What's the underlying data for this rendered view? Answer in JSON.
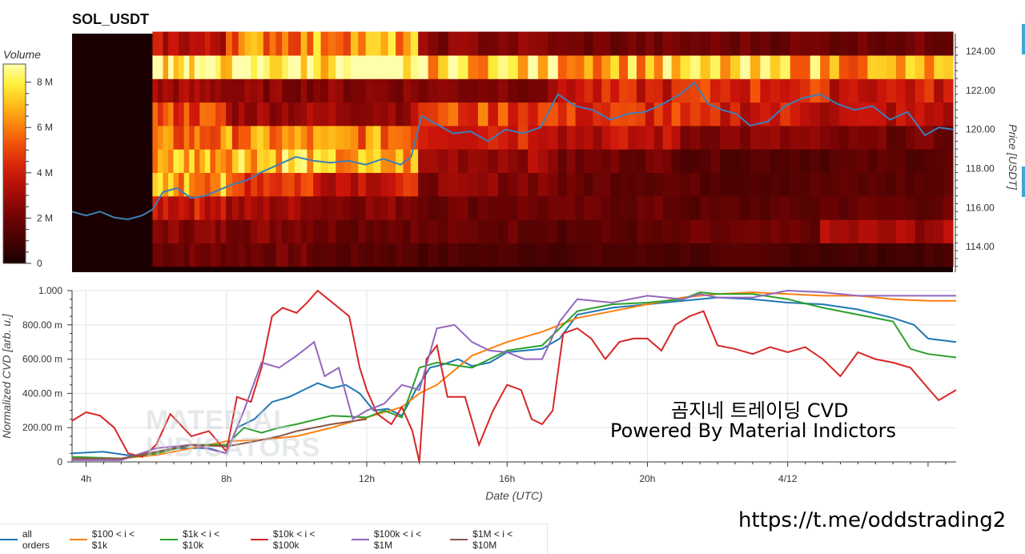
{
  "heatmap": {
    "title": "SOL_USDT",
    "colorbar": {
      "label": "Volume",
      "ticks": [
        "0",
        "2 M",
        "4 M",
        "6 M",
        "8 M"
      ],
      "tick_values": [
        0,
        2,
        4,
        6,
        8
      ],
      "max": 8.8
    },
    "price_axis": {
      "label": "Price [USDT]",
      "ticks": [
        "114.00",
        "116.00",
        "118.00",
        "120.00",
        "122.00",
        "124.00"
      ],
      "tick_values": [
        114,
        116,
        118,
        120,
        122,
        124
      ],
      "range": [
        112.7,
        124.9
      ]
    }
  },
  "promo": {
    "title": "곰지네 트레이딩 CVD",
    "subtitle": "Powered By Material Indictors",
    "link": "https://t.me/oddstrading2"
  },
  "watermark": {
    "line1": "MATERIAL",
    "line2": "INDICATORS"
  },
  "colors": {
    "price_line": "#3d7fb8",
    "heat_dark": "#1a0000",
    "heat_hot": "#ffff99",
    "edge_mark": "#3ea6d6"
  },
  "chart_data": [
    {
      "type": "heatmap",
      "title": "SOL_USDT",
      "xlabel": "Date (UTC)",
      "ylabel": "Price [USDT]",
      "time_range_hours": [
        3.6,
        28.8
      ],
      "no_data_before_hour": 5.9,
      "price_levels": [
        113.6,
        114.8,
        116.0,
        117.2,
        118.4,
        119.6,
        120.8,
        122.0,
        123.2,
        124.4
      ],
      "time_buckets": [
        "5.9-8.0h",
        "8.0-10.5h",
        "10.5-13.5h",
        "13.5-17.5h",
        "17.5-21h",
        "21-25h",
        "25-28.8h"
      ],
      "volume_millions": [
        [
          2.0,
          2.0,
          1.5,
          1.2,
          1.2,
          1.2,
          1.0
        ],
        [
          2.5,
          2.5,
          2.0,
          1.8,
          1.5,
          1.8,
          3.0
        ],
        [
          4.0,
          3.0,
          2.5,
          2.0,
          1.8,
          1.5,
          1.8
        ],
        [
          6.5,
          5.0,
          4.0,
          2.5,
          1.8,
          1.5,
          1.5
        ],
        [
          7.0,
          7.5,
          6.5,
          3.0,
          2.0,
          1.5,
          1.5
        ],
        [
          5.5,
          6.0,
          6.0,
          4.5,
          3.5,
          2.5,
          2.0
        ],
        [
          5.0,
          3.0,
          3.0,
          5.0,
          4.5,
          4.0,
          3.5
        ],
        [
          3.0,
          2.5,
          2.5,
          2.5,
          4.0,
          4.5,
          4.0
        ],
        [
          8.5,
          8.5,
          8.5,
          7.5,
          7.0,
          7.0,
          6.5
        ],
        [
          3.5,
          6.0,
          6.5,
          2.5,
          2.0,
          2.0,
          2.0
        ]
      ],
      "price_line": {
        "x_hours": [
          3.6,
          4.0,
          4.4,
          4.8,
          5.2,
          5.6,
          5.9,
          6.2,
          6.6,
          7.0,
          7.4,
          7.8,
          8.2,
          8.6,
          9.0,
          9.5,
          10.0,
          10.5,
          11.0,
          11.5,
          12.0,
          12.5,
          13.0,
          13.3,
          13.6,
          14.0,
          14.5,
          15.0,
          15.5,
          16.0,
          16.5,
          17.0,
          17.5,
          18.0,
          18.5,
          19.0,
          19.5,
          20.0,
          20.5,
          21.0,
          21.4,
          21.8,
          22.2,
          22.6,
          23.0,
          23.5,
          24.0,
          24.5,
          25.0,
          25.5,
          26.0,
          26.5,
          27.0,
          27.5,
          28.0,
          28.4,
          28.8
        ],
        "price": [
          115.8,
          115.6,
          115.8,
          115.5,
          115.4,
          115.6,
          115.9,
          116.8,
          117.0,
          116.5,
          116.6,
          116.9,
          117.2,
          117.4,
          117.8,
          118.2,
          118.6,
          118.4,
          118.3,
          118.4,
          118.2,
          118.5,
          118.2,
          118.6,
          120.7,
          120.3,
          119.8,
          119.9,
          119.4,
          120.0,
          119.8,
          120.1,
          121.8,
          121.2,
          121.0,
          120.5,
          120.8,
          120.9,
          121.3,
          121.8,
          122.4,
          121.3,
          121.0,
          120.8,
          120.2,
          120.4,
          121.2,
          121.6,
          121.8,
          121.3,
          121.0,
          121.2,
          120.5,
          120.9,
          119.7,
          120.1,
          120.0
        ]
      }
    },
    {
      "type": "line",
      "title": "",
      "xlabel": "Date (UTC)",
      "ylabel": "Normalized CVD [arb. u.]",
      "x_ticks": [
        "4h",
        "8h",
        "12h",
        "16h",
        "20h",
        "4/12"
      ],
      "x_tick_values": [
        4,
        8,
        12,
        16,
        20,
        24
      ],
      "xlim": [
        3.6,
        28.8
      ],
      "y_ticks": [
        "0",
        "200.00 m",
        "400.00 m",
        "600.00 m",
        "800.00 m",
        "1.000"
      ],
      "y_tick_values": [
        0,
        0.2,
        0.4,
        0.6,
        0.8,
        1.0
      ],
      "ylim": [
        0,
        1.0
      ],
      "series": [
        {
          "name": "all orders",
          "color": "#1f77b4",
          "x": [
            3.6,
            4.5,
            5.5,
            6.0,
            6.5,
            7.5,
            8.0,
            8.3,
            8.8,
            9.3,
            9.8,
            10.2,
            10.6,
            11.0,
            11.4,
            11.8,
            12.2,
            12.6,
            13.0,
            13.4,
            13.8,
            14.2,
            14.6,
            15.0,
            15.5,
            16.0,
            16.5,
            17.0,
            17.5,
            18.0,
            19.0,
            20.0,
            21.0,
            22.0,
            23.0,
            24.0,
            25.0,
            26.0,
            27.0,
            27.6,
            28.0,
            28.8
          ],
          "y": [
            0.05,
            0.06,
            0.03,
            0.05,
            0.08,
            0.08,
            0.05,
            0.2,
            0.25,
            0.35,
            0.38,
            0.42,
            0.46,
            0.43,
            0.45,
            0.4,
            0.3,
            0.31,
            0.27,
            0.42,
            0.55,
            0.57,
            0.6,
            0.56,
            0.58,
            0.64,
            0.65,
            0.66,
            0.72,
            0.86,
            0.9,
            0.92,
            0.94,
            0.96,
            0.95,
            0.93,
            0.92,
            0.89,
            0.84,
            0.8,
            0.72,
            0.7
          ]
        },
        {
          "name": "$100 < i < $1k",
          "color": "#ff7f0e",
          "x": [
            3.6,
            5.0,
            6.0,
            7.0,
            8.0,
            9.0,
            10.0,
            11.0,
            12.0,
            13.0,
            13.5,
            14.0,
            15.0,
            16.0,
            17.0,
            18.0,
            19.0,
            20.0,
            21.0,
            22.0,
            23.0,
            24.0,
            25.0,
            26.0,
            27.0,
            28.0,
            28.8
          ],
          "y": [
            0.02,
            0.02,
            0.04,
            0.08,
            0.12,
            0.13,
            0.15,
            0.2,
            0.26,
            0.32,
            0.4,
            0.45,
            0.62,
            0.7,
            0.76,
            0.84,
            0.88,
            0.92,
            0.96,
            0.98,
            0.99,
            0.98,
            0.97,
            0.97,
            0.95,
            0.94,
            0.94
          ]
        },
        {
          "name": "$1k < i < $10k",
          "color": "#2ca02c",
          "x": [
            3.6,
            5.0,
            6.0,
            7.0,
            8.0,
            8.5,
            9.0,
            9.5,
            10.0,
            11.0,
            12.0,
            12.5,
            13.0,
            13.5,
            14.0,
            15.0,
            15.5,
            16.0,
            17.0,
            18.0,
            19.0,
            20.0,
            21.0,
            21.5,
            22.0,
            23.0,
            24.0,
            25.0,
            26.0,
            27.0,
            27.5,
            28.0,
            28.8
          ],
          "y": [
            0.03,
            0.02,
            0.05,
            0.1,
            0.1,
            0.2,
            0.17,
            0.2,
            0.22,
            0.27,
            0.26,
            0.3,
            0.26,
            0.55,
            0.58,
            0.55,
            0.6,
            0.65,
            0.68,
            0.88,
            0.92,
            0.93,
            0.95,
            0.99,
            0.98,
            0.98,
            0.95,
            0.9,
            0.86,
            0.82,
            0.66,
            0.63,
            0.61
          ]
        },
        {
          "name": "$10k < i < $100k",
          "color": "#d62728",
          "x": [
            3.6,
            4.0,
            4.4,
            4.8,
            5.2,
            5.6,
            6.0,
            6.4,
            7.0,
            7.5,
            8.0,
            8.3,
            8.7,
            9.0,
            9.3,
            9.6,
            10.0,
            10.3,
            10.6,
            10.9,
            11.2,
            11.5,
            11.8,
            12.0,
            12.3,
            12.7,
            13.0,
            13.3,
            13.5,
            13.7,
            14.0,
            14.3,
            14.8,
            15.2,
            15.6,
            16.0,
            16.4,
            16.7,
            17.0,
            17.3,
            17.6,
            18.0,
            18.4,
            18.8,
            19.2,
            19.6,
            20.0,
            20.4,
            20.8,
            21.2,
            21.6,
            22.0,
            22.5,
            23.0,
            23.5,
            24.0,
            24.5,
            25.0,
            25.5,
            26.0,
            26.5,
            27.0,
            27.5,
            28.0,
            28.3,
            28.8
          ],
          "y": [
            0.24,
            0.29,
            0.27,
            0.2,
            0.05,
            0.03,
            0.1,
            0.28,
            0.15,
            0.18,
            0.06,
            0.38,
            0.35,
            0.55,
            0.85,
            0.9,
            0.87,
            0.93,
            1.0,
            0.95,
            0.9,
            0.85,
            0.55,
            0.42,
            0.28,
            0.22,
            0.32,
            0.18,
            0.0,
            0.6,
            0.68,
            0.38,
            0.38,
            0.1,
            0.3,
            0.45,
            0.42,
            0.25,
            0.22,
            0.3,
            0.75,
            0.78,
            0.72,
            0.6,
            0.7,
            0.72,
            0.72,
            0.65,
            0.8,
            0.85,
            0.88,
            0.68,
            0.66,
            0.63,
            0.67,
            0.64,
            0.67,
            0.6,
            0.5,
            0.64,
            0.6,
            0.58,
            0.55,
            0.43,
            0.36,
            0.42
          ]
        },
        {
          "name": "$100k < i < $1M",
          "color": "#9467bd",
          "x": [
            3.6,
            5.0,
            6.0,
            7.0,
            8.0,
            8.5,
            9.0,
            9.5,
            10.0,
            10.5,
            10.8,
            11.2,
            11.6,
            12.0,
            12.5,
            13.0,
            13.5,
            14.0,
            14.5,
            15.0,
            15.5,
            16.0,
            16.5,
            17.0,
            17.5,
            18.0,
            19.0,
            20.0,
            21.0,
            21.5,
            22.0,
            23.0,
            24.0,
            25.0,
            26.0,
            27.0,
            28.0,
            28.8
          ],
          "y": [
            0.01,
            0.01,
            0.08,
            0.1,
            0.05,
            0.3,
            0.58,
            0.55,
            0.62,
            0.7,
            0.5,
            0.55,
            0.25,
            0.3,
            0.34,
            0.45,
            0.42,
            0.78,
            0.8,
            0.7,
            0.65,
            0.64,
            0.6,
            0.6,
            0.82,
            0.95,
            0.93,
            0.97,
            0.95,
            0.98,
            0.96,
            0.96,
            1.0,
            0.99,
            0.97,
            0.97,
            0.97,
            0.97
          ]
        },
        {
          "name": "$1M < i < $10M",
          "color": "#8c564b",
          "x": [
            3.6,
            5.0,
            6.0,
            7.0,
            8.0,
            8.8,
            9.5,
            10.0,
            11.0,
            12.0
          ],
          "y": [
            0.02,
            0.02,
            0.06,
            0.1,
            0.09,
            0.12,
            0.15,
            0.18,
            0.22,
            0.25
          ]
        }
      ]
    }
  ]
}
